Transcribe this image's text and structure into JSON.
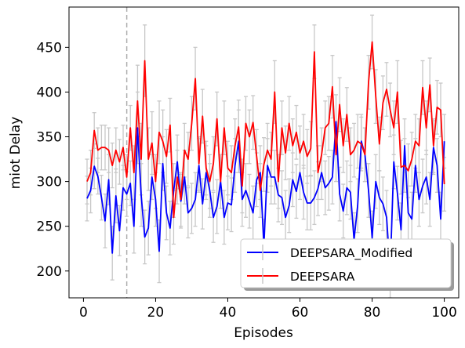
{
  "chart_data": {
    "type": "line",
    "xlabel": "Episodes",
    "ylabel": "miot Delay",
    "xlim": [
      -4,
      104
    ],
    "ylim": [
      170,
      495
    ],
    "xticks": [
      0,
      20,
      40,
      60,
      80,
      100
    ],
    "yticks": [
      200,
      250,
      300,
      350,
      400,
      450
    ],
    "vline_x": 12,
    "legend_position": "lower-right",
    "error_bar_color": "#c8c8c8",
    "series": [
      {
        "name": "DEEPSARA_Modified",
        "color": "#0000ff",
        "x": [
          1,
          2,
          3,
          4,
          5,
          6,
          7,
          8,
          9,
          10,
          11,
          12,
          13,
          14,
          15,
          16,
          17,
          18,
          19,
          20,
          21,
          22,
          23,
          24,
          25,
          26,
          27,
          28,
          29,
          30,
          31,
          32,
          33,
          34,
          35,
          36,
          37,
          38,
          39,
          40,
          41,
          42,
          43,
          44,
          45,
          46,
          47,
          48,
          49,
          50,
          51,
          52,
          53,
          54,
          55,
          56,
          57,
          58,
          59,
          60,
          61,
          62,
          63,
          64,
          65,
          66,
          67,
          68,
          69,
          70,
          71,
          72,
          73,
          74,
          75,
          76,
          77,
          78,
          79,
          80,
          81,
          82,
          83,
          84,
          85,
          86,
          87,
          88,
          89,
          90,
          91,
          92,
          93,
          94,
          95,
          96,
          97,
          98,
          99,
          100
        ],
        "y": [
          281,
          290,
          317,
          306,
          282,
          256,
          302,
          220,
          284,
          245,
          293,
          286,
          298,
          250,
          360,
          285,
          238,
          248,
          305,
          280,
          222,
          320,
          265,
          248,
          290,
          322,
          278,
          305,
          265,
          270,
          280,
          318,
          275,
          310,
          290,
          260,
          272,
          300,
          260,
          276,
          274,
          318,
          345,
          280,
          290,
          278,
          265,
          302,
          310,
          228,
          318,
          305,
          305,
          285,
          282,
          260,
          273,
          302,
          289,
          310,
          288,
          276,
          276,
          282,
          292,
          310,
          293,
          298,
          305,
          367,
          286,
          267,
          293,
          288,
          235,
          273,
          345,
          330,
          290,
          237,
          300,
          282,
          275,
          260,
          200,
          322,
          287,
          246,
          340,
          265,
          258,
          318,
          280,
          295,
          305,
          280,
          338,
          318,
          258,
          345
        ],
        "err": [
          25,
          25,
          25,
          20,
          25,
          30,
          28,
          30,
          30,
          28,
          25,
          25,
          25,
          30,
          40,
          35,
          30,
          30,
          25,
          30,
          35,
          30,
          30,
          30,
          30,
          30,
          30,
          30,
          28,
          28,
          30,
          30,
          28,
          30,
          30,
          28,
          30,
          30,
          30,
          30,
          30,
          30,
          35,
          30,
          30,
          30,
          30,
          30,
          30,
          30,
          30,
          30,
          30,
          30,
          30,
          30,
          30,
          30,
          30,
          30,
          30,
          30,
          30,
          30,
          30,
          30,
          30,
          30,
          30,
          30,
          30,
          30,
          30,
          30,
          30,
          30,
          30,
          30,
          30,
          30,
          30,
          30,
          30,
          30,
          30,
          30,
          30,
          30,
          30,
          30,
          30,
          30,
          30,
          30,
          30,
          30,
          30,
          30,
          30,
          30
        ]
      },
      {
        "name": "DEEPSARA",
        "color": "#ff0000",
        "x": [
          1,
          2,
          3,
          4,
          5,
          6,
          7,
          8,
          9,
          10,
          11,
          12,
          13,
          14,
          15,
          16,
          17,
          18,
          19,
          20,
          21,
          22,
          23,
          24,
          25,
          26,
          27,
          28,
          29,
          30,
          31,
          32,
          33,
          34,
          35,
          36,
          37,
          38,
          39,
          40,
          41,
          42,
          43,
          44,
          45,
          46,
          47,
          48,
          49,
          50,
          51,
          52,
          53,
          54,
          55,
          56,
          57,
          58,
          59,
          60,
          61,
          62,
          63,
          64,
          65,
          66,
          67,
          68,
          69,
          70,
          71,
          72,
          73,
          74,
          75,
          76,
          77,
          78,
          79,
          80,
          81,
          82,
          83,
          84,
          85,
          86,
          87,
          88,
          89,
          90,
          91,
          92,
          93,
          94,
          95,
          96,
          97,
          98,
          99,
          100
        ],
        "y": [
          300,
          310,
          357,
          335,
          338,
          338,
          335,
          318,
          335,
          322,
          338,
          305,
          360,
          310,
          390,
          325,
          435,
          325,
          343,
          300,
          355,
          345,
          328,
          363,
          260,
          305,
          280,
          335,
          325,
          365,
          415,
          320,
          373,
          315,
          300,
          320,
          370,
          300,
          360,
          315,
          310,
          340,
          361,
          295,
          365,
          350,
          366,
          328,
          290,
          319,
          335,
          325,
          400,
          300,
          360,
          332,
          365,
          340,
          355,
          332,
          345,
          328,
          337,
          445,
          310,
          330,
          360,
          365,
          406,
          330,
          386,
          340,
          375,
          330,
          335,
          345,
          342,
          330,
          411,
          456,
          395,
          342,
          388,
          403,
          380,
          360,
          400,
          316,
          318,
          312,
          325,
          345,
          340,
          405,
          360,
          408,
          340,
          383,
          380,
          297
        ],
        "err": [
          25,
          25,
          20,
          25,
          25,
          25,
          25,
          25,
          25,
          25,
          25,
          25,
          25,
          30,
          40,
          40,
          40,
          35,
          35,
          30,
          35,
          35,
          30,
          30,
          30,
          30,
          30,
          30,
          30,
          30,
          35,
          30,
          30,
          30,
          30,
          30,
          30,
          30,
          30,
          30,
          30,
          30,
          30,
          30,
          30,
          30,
          30,
          30,
          30,
          30,
          30,
          30,
          35,
          30,
          30,
          30,
          30,
          30,
          30,
          30,
          30,
          30,
          30,
          30,
          30,
          30,
          30,
          30,
          35,
          30,
          30,
          30,
          30,
          30,
          30,
          30,
          30,
          30,
          30,
          30,
          30,
          30,
          30,
          30,
          30,
          30,
          35,
          30,
          30,
          30,
          30,
          30,
          30,
          30,
          30,
          30,
          30,
          30,
          30,
          30
        ]
      }
    ]
  }
}
